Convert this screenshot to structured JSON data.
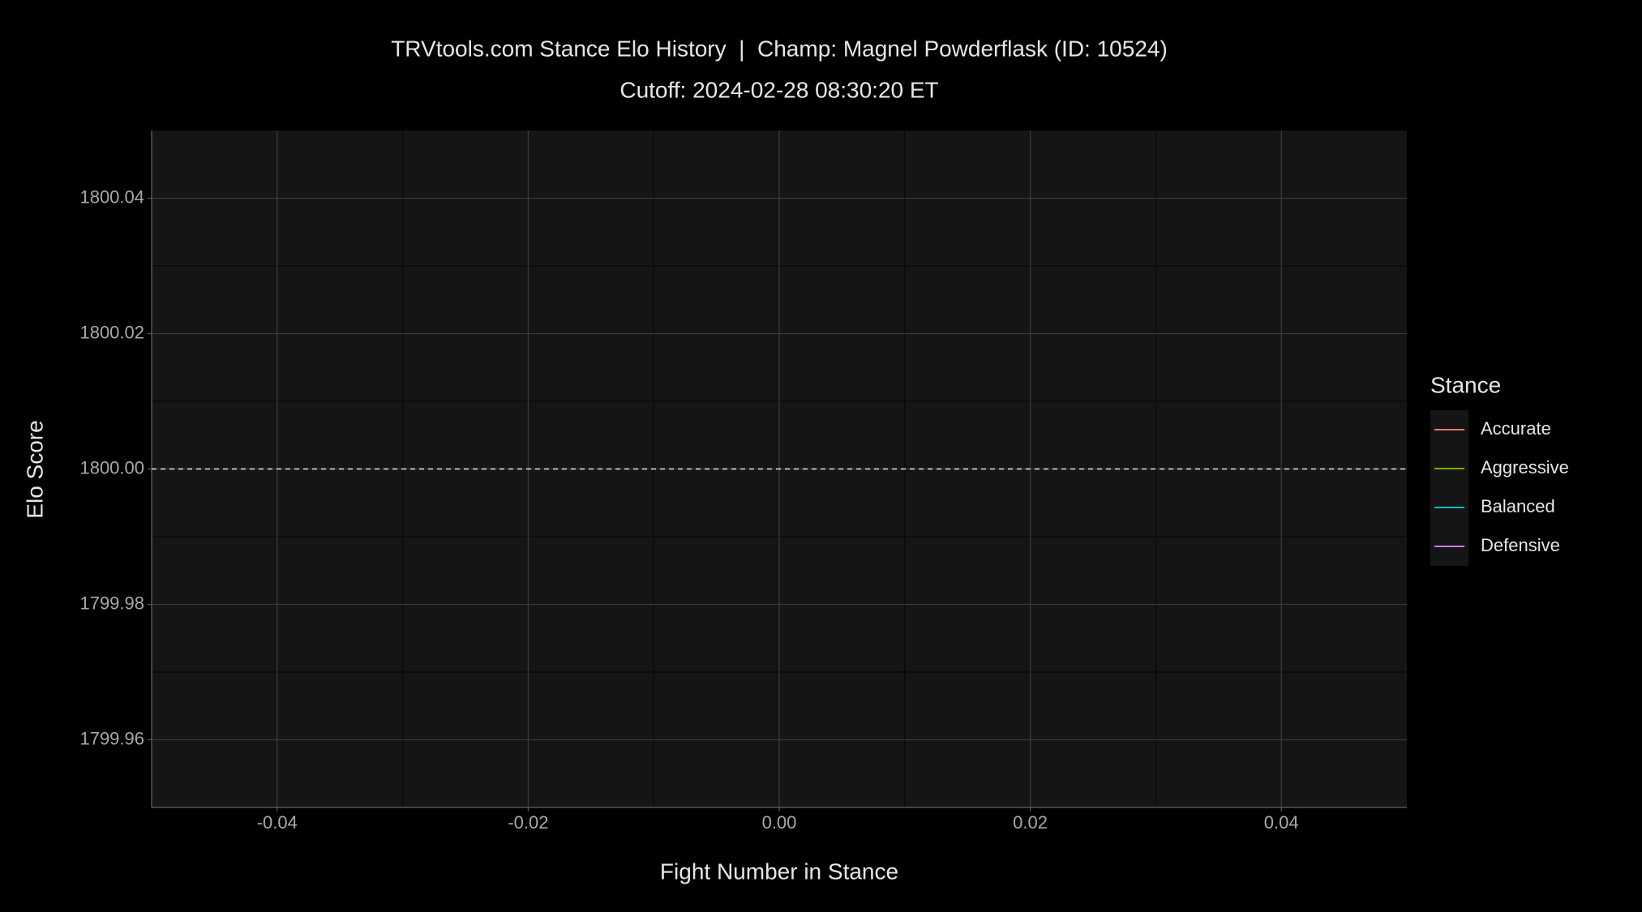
{
  "chart_data": {
    "type": "line",
    "title": "TRVtools.com Stance Elo History  |  Champ: Magnel Powderflask (ID: 10524)",
    "subtitle": "Cutoff: 2024-02-28 08:30:20 ET",
    "x_label": "Fight Number in Stance",
    "y_label": "Elo Score",
    "legend_title": "Stance",
    "legend_position": "right",
    "x": [],
    "series": [
      {
        "name": "Accurate",
        "color": "#F8766D",
        "values": []
      },
      {
        "name": "Aggressive",
        "color": "#7CAE00",
        "values": []
      },
      {
        "name": "Balanced",
        "color": "#00BFC4",
        "values": []
      },
      {
        "name": "Defensive",
        "color": "#C77CFF",
        "values": []
      }
    ],
    "reference_line": 1800,
    "xlim": [
      -0.05,
      0.05
    ],
    "xticks": [
      -0.04,
      -0.02,
      {
        "value": 0,
        "label": "0.00"
      },
      0.02,
      0.04
    ],
    "ylim": [
      1799.95,
      1800.05
    ],
    "yticks": [
      1799.96,
      1799.98,
      {
        "value": 1800,
        "label": "1800.00"
      },
      1800.02,
      1800.04
    ],
    "grid": true
  }
}
